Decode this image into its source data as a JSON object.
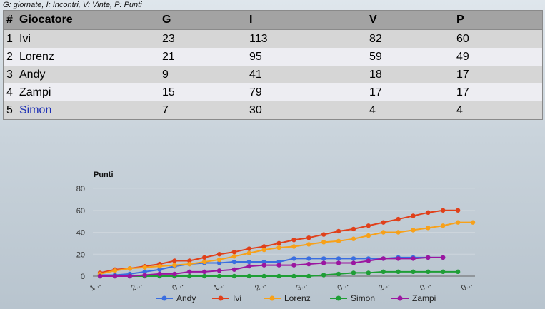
{
  "legend_note": "G: giornate, I: Incontri, V: Vinte, P: Punti",
  "table": {
    "headers": [
      "#",
      "Giocatore",
      "G",
      "I",
      "V",
      "P"
    ],
    "rows": [
      {
        "rank": "1",
        "name": "Ivi",
        "g": "23",
        "i": "113",
        "v": "82",
        "p": "60"
      },
      {
        "rank": "2",
        "name": "Lorenz",
        "g": "21",
        "i": "95",
        "v": "59",
        "p": "49"
      },
      {
        "rank": "3",
        "name": "Andy",
        "g": "9",
        "i": "41",
        "v": "18",
        "p": "17"
      },
      {
        "rank": "4",
        "name": "Zampi",
        "g": "15",
        "i": "79",
        "v": "17",
        "p": "17"
      },
      {
        "rank": "5",
        "name": "Simon",
        "g": "7",
        "i": "30",
        "v": "4",
        "p": "4"
      }
    ]
  },
  "chart_data": {
    "type": "line",
    "ylabel": "Punti",
    "ylim": [
      0,
      80
    ],
    "yticks": [
      0,
      20,
      40,
      60,
      80
    ],
    "x_tick_labels": [
      "1...",
      "2...",
      "0...",
      "1...",
      "2...",
      "3...",
      "0...",
      "2...",
      "0...",
      "0..."
    ],
    "grid": true,
    "legend_position": "bottom",
    "series": [
      {
        "name": "Andy",
        "color": "#3a6ee0",
        "values": [
          1,
          1,
          2,
          4,
          6,
          9,
          11,
          12,
          12,
          13,
          13,
          13,
          13,
          16,
          16,
          16,
          16,
          16,
          16,
          16,
          17,
          17,
          17,
          17
        ]
      },
      {
        "name": "Ivi",
        "color": "#e0401a",
        "values": [
          3,
          6,
          7,
          9,
          11,
          14,
          14,
          17,
          20,
          22,
          25,
          27,
          30,
          33,
          35,
          38,
          41,
          43,
          46,
          49,
          52,
          55,
          58,
          60,
          60
        ]
      },
      {
        "name": "Lorenz",
        "color": "#f7a11a",
        "values": [
          2,
          5,
          7,
          8,
          9,
          10,
          11,
          13,
          15,
          18,
          21,
          24,
          26,
          27,
          29,
          31,
          32,
          34,
          37,
          40,
          40,
          42,
          44,
          46,
          49,
          49
        ]
      },
      {
        "name": "Simon",
        "color": "#1f9e36",
        "values": [
          0,
          0,
          0,
          0,
          0,
          0,
          0,
          0,
          0,
          0,
          0,
          0,
          0,
          0,
          0,
          1,
          2,
          3,
          3,
          4,
          4,
          4,
          4,
          4,
          4
        ]
      },
      {
        "name": "Zampi",
        "color": "#9b16a0",
        "values": [
          0,
          0,
          0,
          1,
          2,
          2,
          4,
          4,
          5,
          6,
          9,
          10,
          10,
          10,
          11,
          12,
          12,
          12,
          14,
          16,
          16,
          16,
          17,
          17
        ]
      }
    ]
  }
}
